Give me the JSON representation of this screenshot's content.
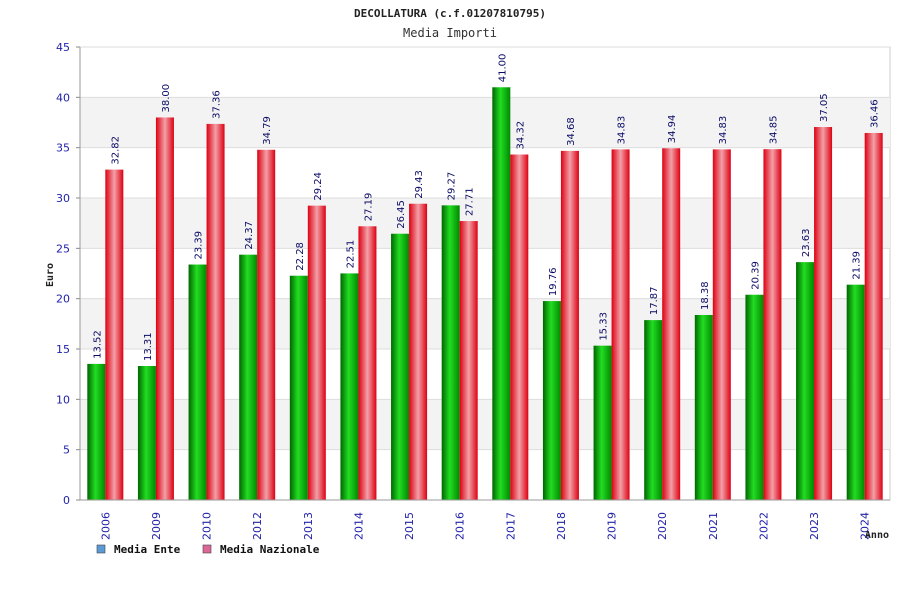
{
  "chart_data": {
    "type": "bar",
    "title": "DECOLLATURA (c.f.01207810795)",
    "subtitle": "Media Importi",
    "xlabel": "Anno",
    "ylabel": "Euro",
    "ylim": [
      0,
      45
    ],
    "yticks": [
      0,
      5,
      10,
      15,
      20,
      25,
      30,
      35,
      40,
      45
    ],
    "grid": true,
    "legend_position": "bottom-left",
    "categories": [
      "2006",
      "2009",
      "2010",
      "2012",
      "2013",
      "2014",
      "2015",
      "2016",
      "2017",
      "2018",
      "2019",
      "2020",
      "2021",
      "2022",
      "2023",
      "2024"
    ],
    "series": [
      {
        "name": "Media Ente",
        "color": "#00aa00",
        "legend_color": "#5b9bd5",
        "values": [
          13.52,
          13.31,
          23.39,
          24.37,
          22.28,
          22.51,
          26.45,
          29.27,
          41.0,
          19.76,
          15.33,
          17.87,
          18.38,
          20.39,
          23.63,
          21.39
        ],
        "labels": [
          "13.52",
          "13.31",
          "23.39",
          "24.37",
          "22.28",
          "22.51",
          "26.45",
          "29.27",
          "41.00",
          "19.76",
          "15.33",
          "17.87",
          "18.38",
          "20.39",
          "23.63",
          "21.39"
        ]
      },
      {
        "name": "Media Nazionale",
        "color": "#ee1122",
        "legend_color": "#dd6699",
        "values": [
          32.82,
          38.0,
          37.36,
          34.79,
          29.24,
          27.19,
          29.43,
          27.71,
          34.32,
          34.68,
          34.83,
          34.94,
          34.83,
          34.85,
          37.05,
          36.46
        ],
        "labels": [
          "32.82",
          "38.00",
          "37.36",
          "34.79",
          "29.24",
          "27.19",
          "29.43",
          "27.71",
          "34.32",
          "34.68",
          "34.83",
          "34.94",
          "34.83",
          "34.85",
          "37.05",
          "36.46"
        ]
      }
    ]
  }
}
